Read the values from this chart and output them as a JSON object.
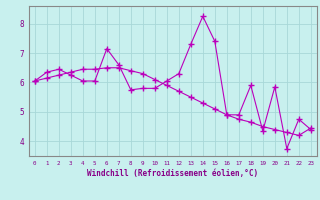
{
  "xlabel": "Windchill (Refroidissement éolien,°C)",
  "bg_color": "#c8f0ee",
  "line_color": "#bb00bb",
  "grid_color": "#a8d8d8",
  "axis_color": "#880088",
  "spine_color": "#888888",
  "xlim": [
    -0.5,
    23.5
  ],
  "ylim": [
    3.5,
    8.6
  ],
  "xticks": [
    0,
    1,
    2,
    3,
    4,
    5,
    6,
    7,
    8,
    9,
    10,
    11,
    12,
    13,
    14,
    15,
    16,
    17,
    18,
    19,
    20,
    21,
    22,
    23
  ],
  "yticks": [
    4,
    5,
    6,
    7,
    8
  ],
  "line1_x": [
    0,
    1,
    2,
    3,
    4,
    5,
    6,
    7,
    8,
    9,
    10,
    11,
    12,
    13,
    14,
    15,
    16,
    17,
    18,
    19,
    20,
    21,
    22,
    23
  ],
  "line1_y": [
    6.05,
    6.35,
    6.45,
    6.25,
    6.05,
    6.05,
    7.15,
    6.6,
    5.75,
    5.8,
    5.8,
    6.05,
    6.3,
    7.3,
    8.25,
    7.4,
    4.9,
    4.9,
    5.9,
    4.35,
    5.85,
    3.75,
    4.75,
    4.4
  ],
  "line2_x": [
    0,
    1,
    2,
    3,
    4,
    5,
    6,
    7,
    8,
    9,
    10,
    11,
    12,
    13,
    14,
    15,
    16,
    17,
    18,
    19,
    20,
    21,
    22,
    23
  ],
  "line2_y": [
    6.05,
    6.15,
    6.25,
    6.35,
    6.45,
    6.45,
    6.5,
    6.5,
    6.4,
    6.3,
    6.1,
    5.9,
    5.7,
    5.5,
    5.3,
    5.1,
    4.9,
    4.75,
    4.65,
    4.5,
    4.4,
    4.3,
    4.2,
    4.45
  ],
  "marker": "+",
  "markersize": 4,
  "markeredgewidth": 1.0,
  "linewidth": 0.8
}
